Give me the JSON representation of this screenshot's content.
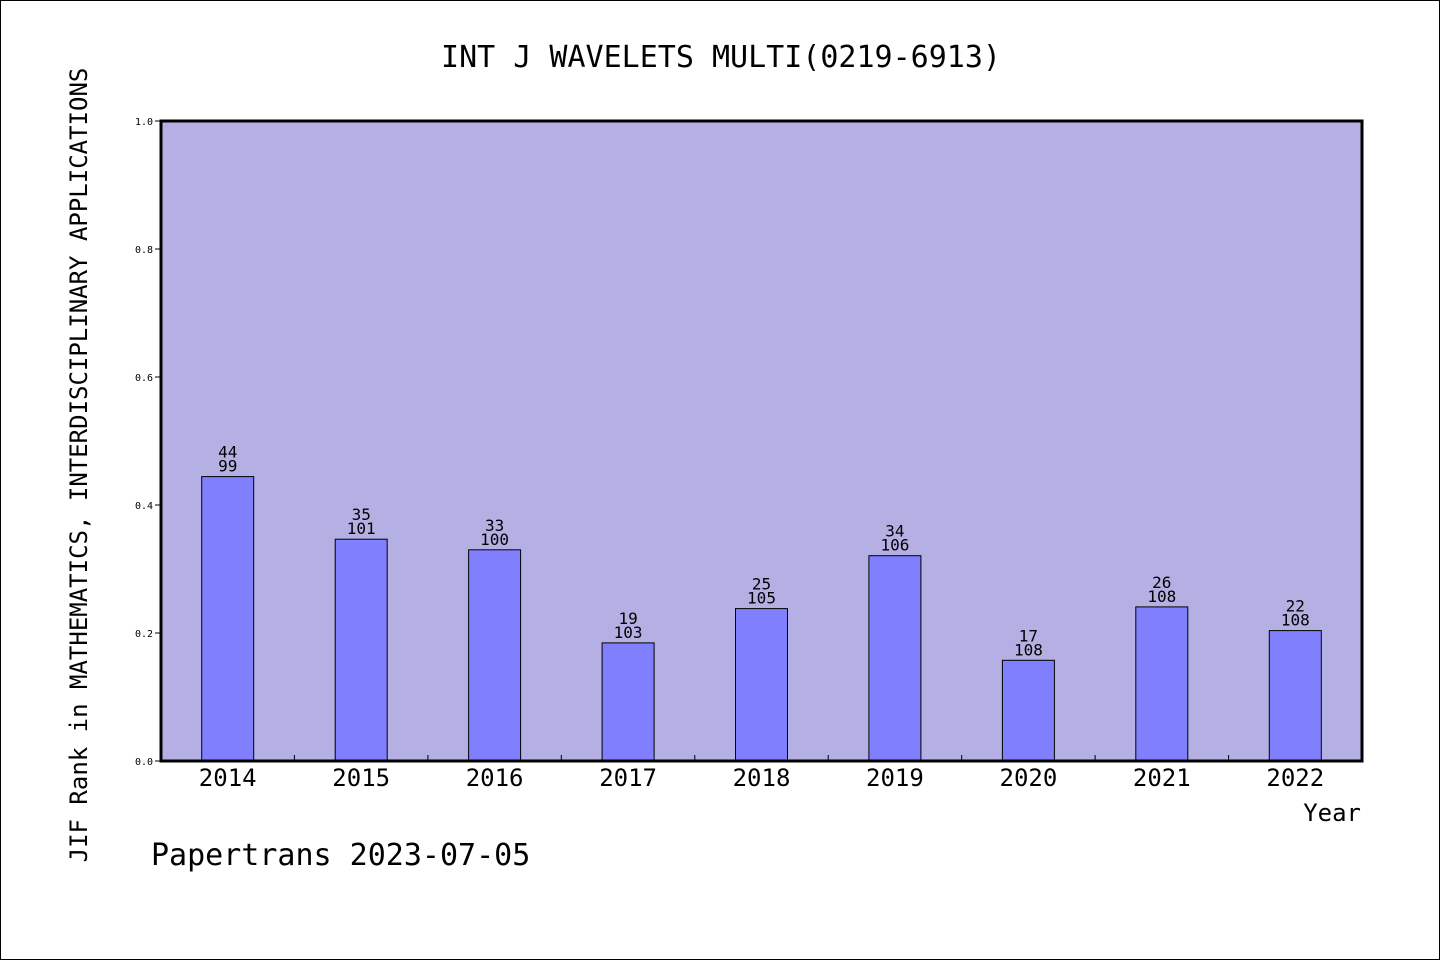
{
  "chart_data": {
    "type": "bar",
    "title": "INT J WAVELETS MULTI(0219-6913)",
    "xlabel": "Year",
    "ylabel": "JIF Rank in MATHEMATICS,  INTERDISCIPLINARY APPLICATIONS",
    "categories": [
      "2014",
      "2015",
      "2016",
      "2017",
      "2018",
      "2019",
      "2020",
      "2021",
      "2022"
    ],
    "ranks": [
      44,
      35,
      33,
      19,
      25,
      34,
      17,
      26,
      22
    ],
    "totals": [
      99,
      101,
      100,
      103,
      105,
      106,
      108,
      108,
      108
    ],
    "ylim": [
      0,
      1.0
    ],
    "yticks": [
      "0.0",
      "0.2",
      "0.4",
      "0.6",
      "0.8",
      "1.0"
    ],
    "grid": false,
    "legend": "none",
    "colors": {
      "plot_background": "#b5b0e3",
      "bar_fill": "#8080ff",
      "bar_stroke": "#000000",
      "axis": "#000000"
    }
  },
  "footer": {
    "text": "Papertrans 2023-07-05"
  }
}
